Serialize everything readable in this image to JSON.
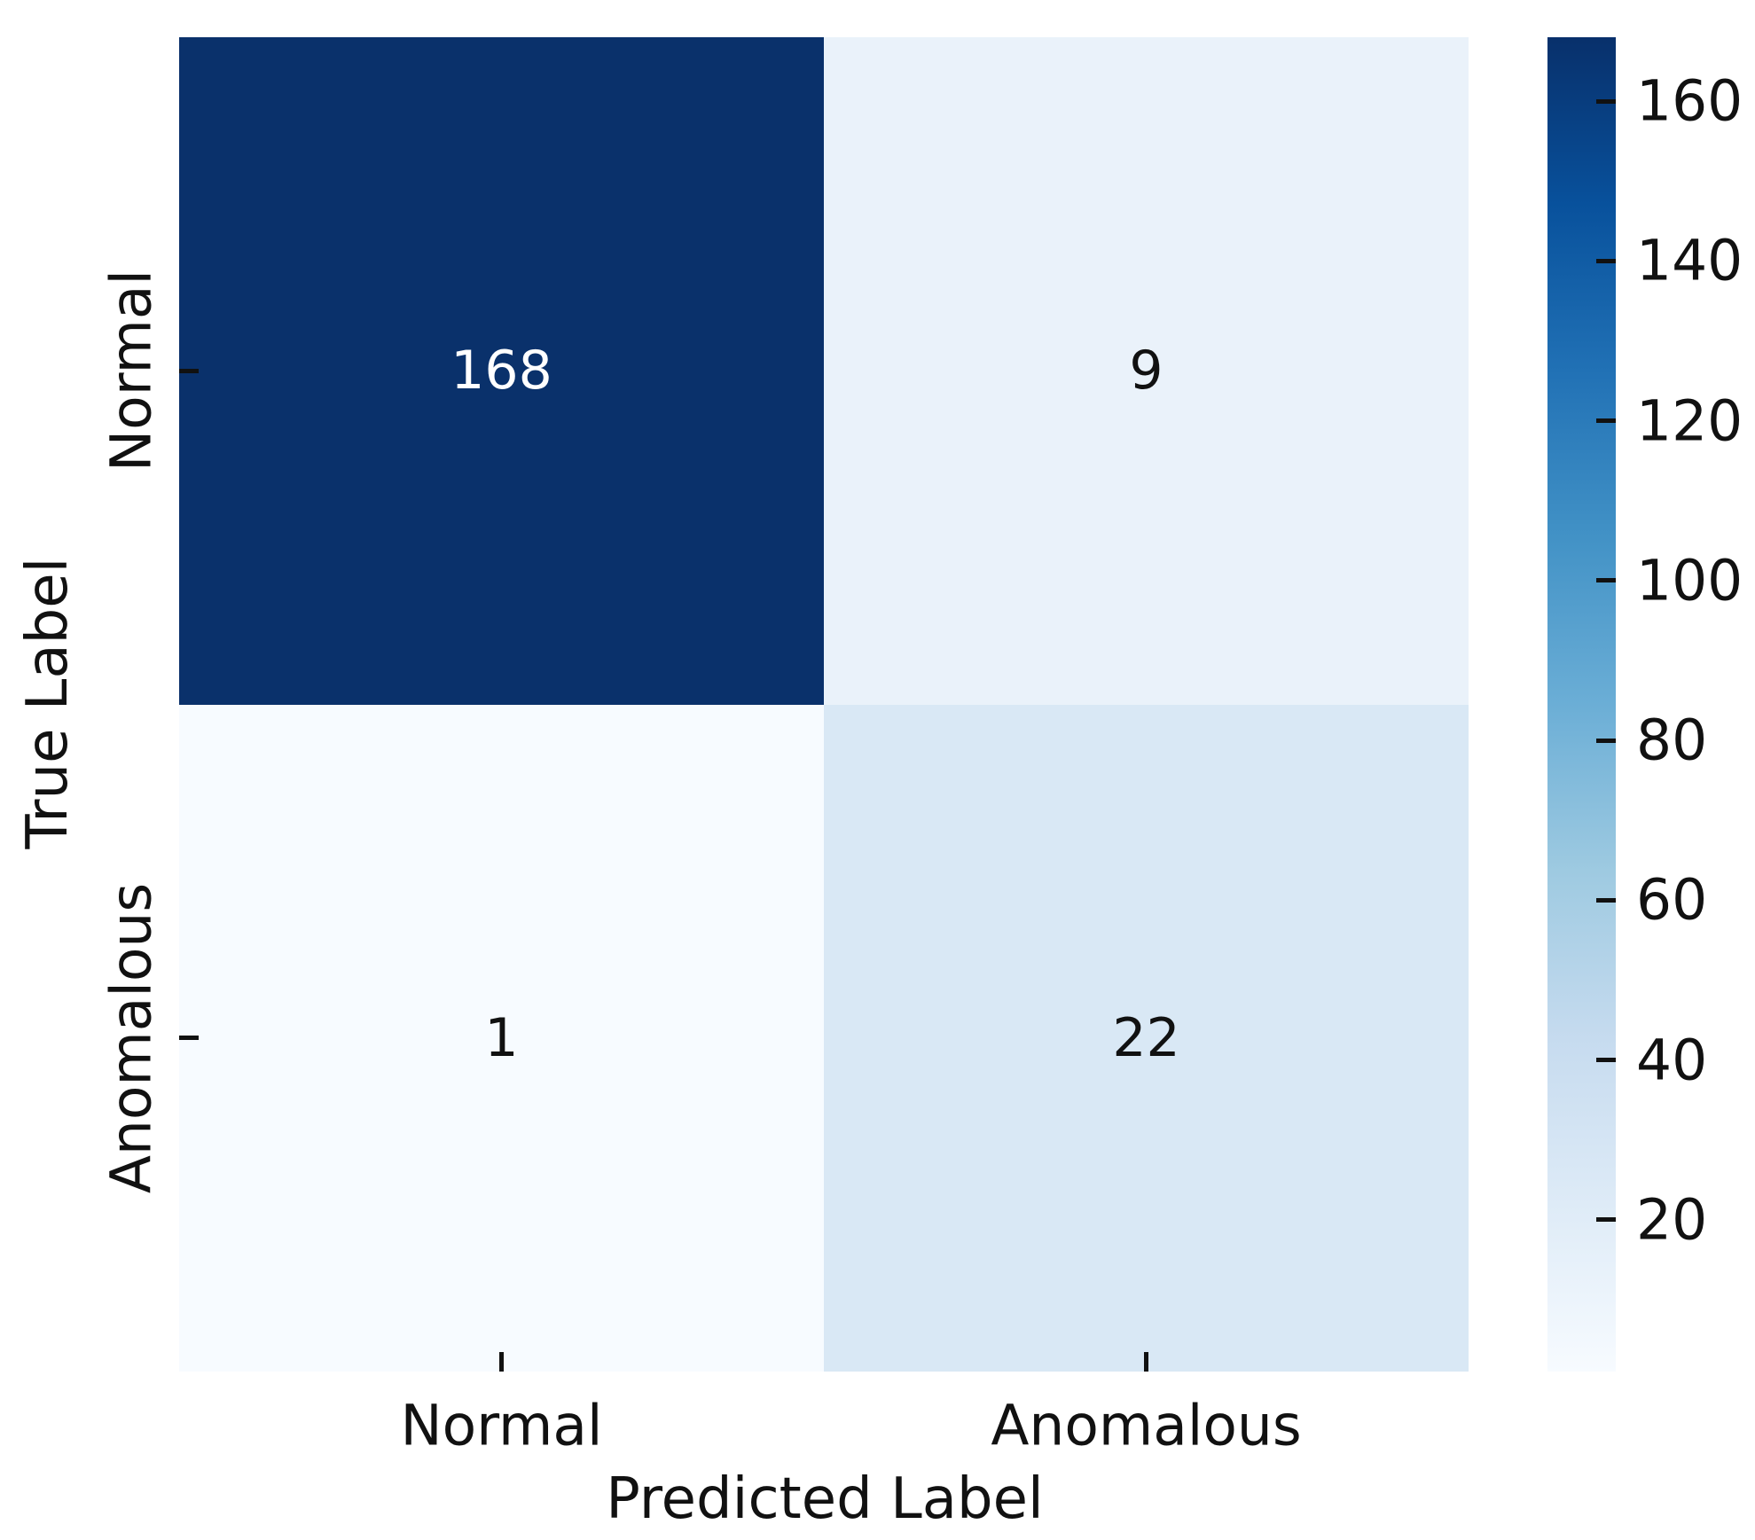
{
  "figure": {
    "background_color": "#ffffff",
    "text_color": "#111111",
    "tick_color": "#111111"
  },
  "chart_data": {
    "type": "heatmap",
    "title": "",
    "xlabel": "Predicted Label",
    "ylabel": "True Label",
    "x_categories": [
      "Normal",
      "Anomalous"
    ],
    "y_categories": [
      "Normal",
      "Anomalous"
    ],
    "matrix": [
      [
        168,
        9
      ],
      [
        1,
        22
      ]
    ],
    "cell_colors": [
      [
        "#0a316b",
        "#eaf2fa"
      ],
      [
        "#f7fbff",
        "#d9e8f5"
      ]
    ],
    "cell_text_colors": [
      [
        "#ffffff",
        "#111111"
      ],
      [
        "#111111",
        "#111111"
      ]
    ],
    "grid": false,
    "legend": "colorbar-right",
    "colorbar": {
      "vmin": 1,
      "vmax": 168,
      "ticks": [
        20,
        40,
        60,
        80,
        100,
        120,
        140,
        160
      ],
      "colormap_name": "Blues",
      "colormap_stops": [
        "#f7fbff",
        "#deebf7",
        "#c6dbef",
        "#9ecae1",
        "#6baed6",
        "#4292c6",
        "#2171b5",
        "#08519c",
        "#08306b"
      ]
    }
  }
}
